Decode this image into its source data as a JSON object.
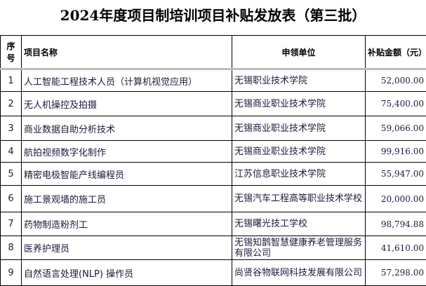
{
  "title": "2024年度项目制培训项目补贴发放表（第三批）",
  "headers": [
    "序号",
    "项目名称",
    "申领单位",
    "补贴金额（元）"
  ],
  "rows": [
    [
      "1",
      "人工智能工程技术人员（计算机视觉应用）",
      "无锡职业技术学院",
      "52,000.00"
    ],
    [
      "2",
      "无人机操控及拍摄",
      "无锡商业职业技术学院",
      "75,400.00"
    ],
    [
      "3",
      "商业数据自助分析技术",
      "无锡商业职业技术学院",
      "59,066.00"
    ],
    [
      "4",
      "航拍视频数字化制作",
      "无锡商业职业技术学院",
      "99,916.00"
    ],
    [
      "5",
      "精密电极智能产线编程员",
      "江苏信息职业技术学院",
      "55,947.00"
    ],
    [
      "6",
      "施工景观墙的施工员",
      "无锡汽车工程高等职业技术学校",
      "20,000.00"
    ],
    [
      "7",
      "药物制造粉剂工",
      "无锡曙光技工学校",
      "98,794.88"
    ],
    [
      "8",
      "医养护理员",
      "无锡知鹊智慧健康养老管理服务有限公司",
      "41,610.00"
    ],
    [
      "9",
      "自然语言处理(NLP) 操作员",
      "尚贤谷物联网科技发展有限公司",
      "57,298.00"
    ]
  ]
}
